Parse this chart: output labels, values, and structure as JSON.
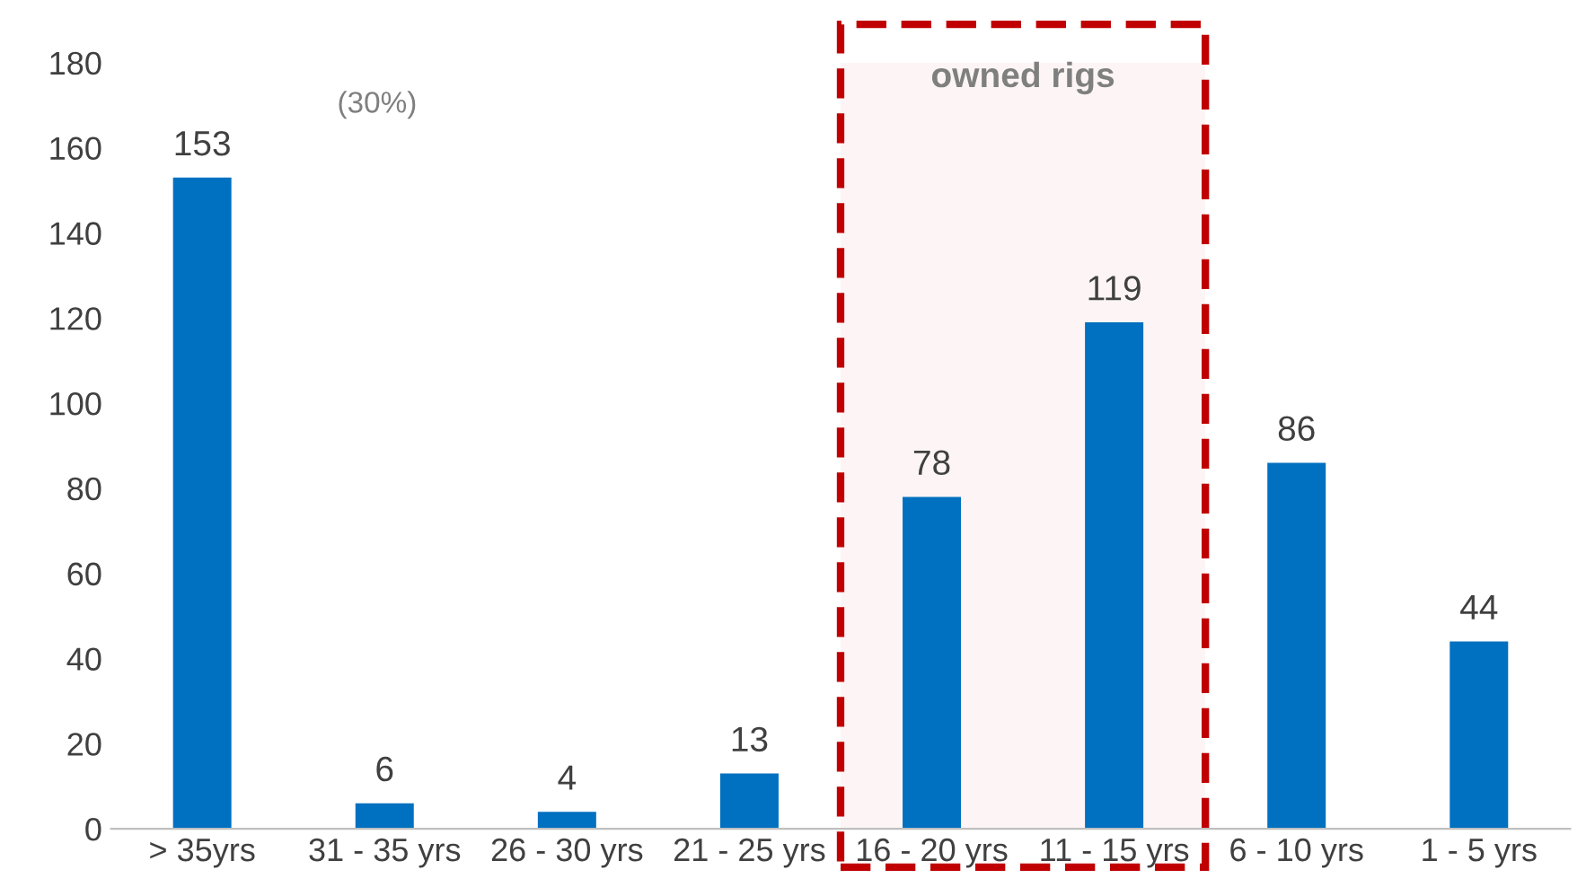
{
  "chart_data": {
    "type": "bar",
    "categories": [
      "> 35yrs",
      "31 - 35 yrs",
      "26 - 30 yrs",
      "21 - 25 yrs",
      "16 - 20 yrs",
      "11 - 15 yrs",
      "6 - 10 yrs",
      "1 - 5 yrs"
    ],
    "values": [
      153,
      6,
      4,
      13,
      78,
      119,
      86,
      44
    ],
    "color": "#0070c0",
    "data_labels": true,
    "ylim": [
      0,
      180
    ],
    "yticks": [
      0,
      20,
      40,
      60,
      80,
      100,
      120,
      140,
      160,
      180
    ],
    "grid": false,
    "legend": false,
    "annotations": [
      "(30%)"
    ],
    "bands": [
      {
        "axis": "x",
        "from": "16 - 20 yrs",
        "to": "11 - 15 yrs",
        "label": "owned rigs",
        "color": "#c00000"
      }
    ]
  }
}
